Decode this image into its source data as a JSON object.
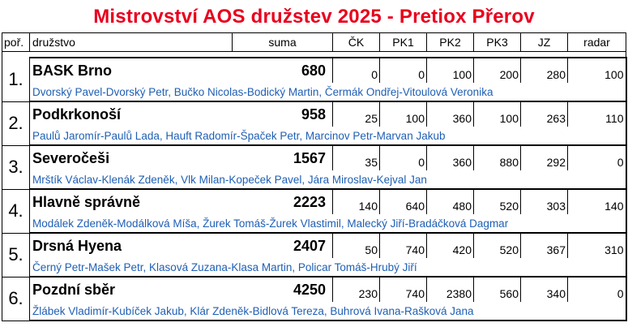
{
  "title": "Mistrovství AOS družstev 2025 - Pretiox Přerov",
  "columns": {
    "rank": "poř.",
    "team": "družstvo",
    "sum": "suma",
    "ck": "ČK",
    "pk1": "PK1",
    "pk2": "PK2",
    "pk3": "PK3",
    "jz": "JZ",
    "radar": "radar"
  },
  "teams": [
    {
      "rank": "1.",
      "name": "BASK Brno",
      "sum": "680",
      "ck": "0",
      "pk1": "0",
      "pk2": "100",
      "pk3": "200",
      "jz": "280",
      "radar": "100",
      "members": "Dvorský Pavel-Dvorský Petr,   Bučko Nicolas-Bodický Martin,   Čermák Ondřej-Vitoulová Veronika"
    },
    {
      "rank": "2.",
      "name": "Podkrkonoší",
      "sum": "958",
      "ck": "25",
      "pk1": "100",
      "pk2": "360",
      "pk3": "100",
      "jz": "263",
      "radar": "110",
      "members": "Paulů Jaromír-Paulů Lada,   Hauft Radomír-Špaček Petr,   Marcinov Petr-Marvan Jakub"
    },
    {
      "rank": "3.",
      "name": "Severočeši",
      "sum": "1567",
      "ck": "35",
      "pk1": "0",
      "pk2": "360",
      "pk3": "880",
      "jz": "292",
      "radar": "0",
      "members": "Mrštík Václav-Klenák Zdeněk,   Vlk Milan-Kopeček Pavel,   Jára Miroslav-Kejval Jan"
    },
    {
      "rank": "4.",
      "name": "Hlavně správně",
      "sum": "2223",
      "ck": "140",
      "pk1": "640",
      "pk2": "480",
      "pk3": "520",
      "jz": "303",
      "radar": "140",
      "members": "Modálek Zdeněk-Modálková Míša,   Žurek Tomáš-Žurek Vlastimil,   Malecký Jiří-Bradáčková Dagmar"
    },
    {
      "rank": "5.",
      "name": "Drsná Hyena",
      "sum": "2407",
      "ck": "50",
      "pk1": "740",
      "pk2": "420",
      "pk3": "520",
      "jz": "367",
      "radar": "310",
      "members": "Černý Petr-Mašek Petr,   Klasová Zuzana-Klasa Martin,   Policar Tomáš-Hrubý Jiří"
    },
    {
      "rank": "6.",
      "name": "Pozdní sběr",
      "sum": "4250",
      "ck": "230",
      "pk1": "740",
      "pk2": "2380",
      "pk3": "560",
      "jz": "340",
      "radar": "0",
      "members": "Žlábek Vladimír-Kubíček Jakub,   Klár Zdeněk-Bidlová Tereza,   Buhrová Ivana-Rašková Jana"
    }
  ]
}
